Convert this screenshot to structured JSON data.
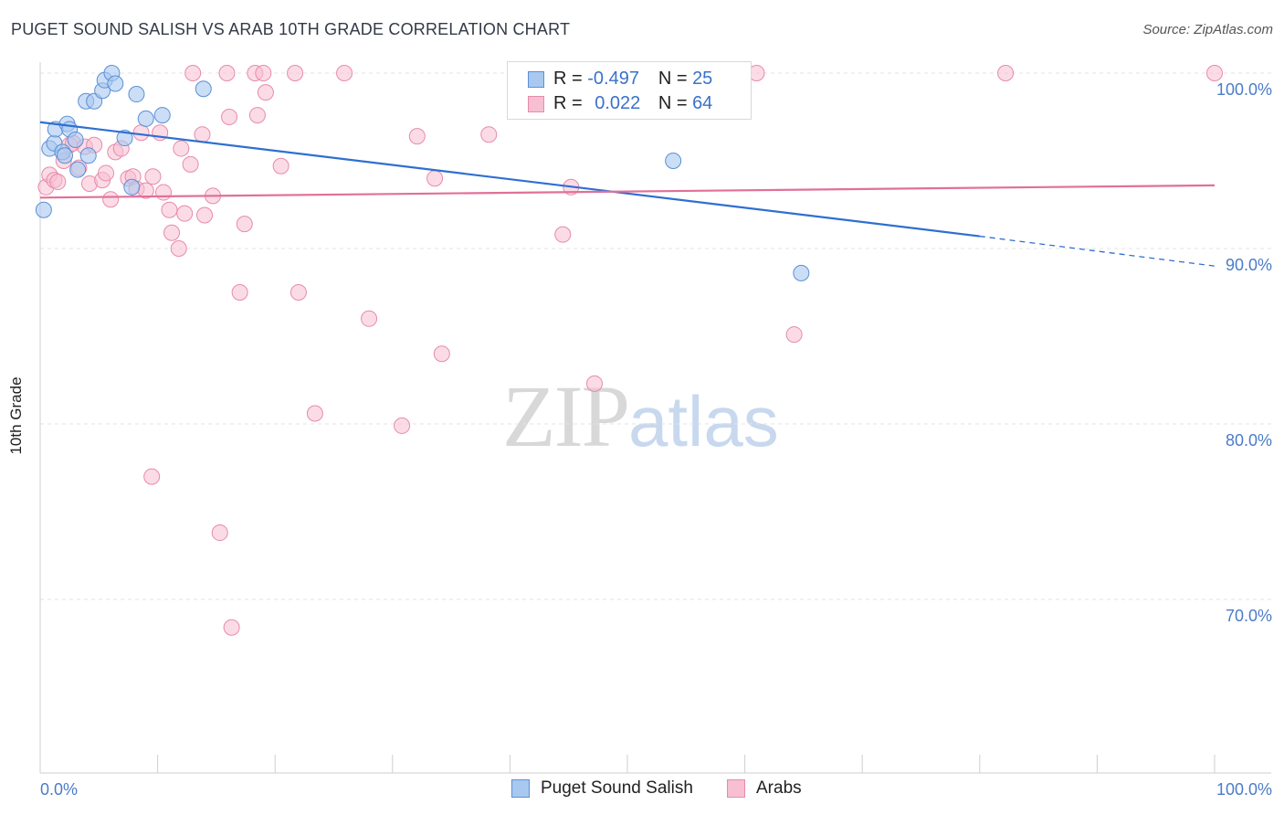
{
  "title": "PUGET SOUND SALISH VS ARAB 10TH GRADE CORRELATION CHART",
  "source": "Source: ZipAtlas.com",
  "watermark": {
    "zip": "ZIP",
    "atlas": "atlas"
  },
  "colors": {
    "blue_fill": "#a9c8f0",
    "blue_stroke": "#5b8fd6",
    "blue_line": "#2e6fd1",
    "pink_fill": "#f7c0d2",
    "pink_stroke": "#e88aaa",
    "pink_line": "#e0709a",
    "grid": "#e3e3e3",
    "tick_text": "#4a7cc9"
  },
  "legend": {
    "rows": [
      {
        "r_label": "R =",
        "r_value": "-0.497",
        "n_label": "N =",
        "n_value": "25"
      },
      {
        "r_label": "R =",
        "r_value": "0.022",
        "n_label": "N =",
        "n_value": "64"
      }
    ]
  },
  "bottom_legend": [
    {
      "label": "Puget Sound Salish"
    },
    {
      "label": "Arabs"
    }
  ],
  "chart_data": {
    "type": "scatter",
    "title": "PUGET SOUND SALISH VS ARAB 10TH GRADE CORRELATION CHART",
    "xlabel": "",
    "ylabel": "10th Grade",
    "xlim": [
      0,
      100
    ],
    "ylim": [
      60.5,
      100.5
    ],
    "x_tick_labels": [
      "0.0%",
      "100.0%"
    ],
    "y_ticks": [
      {
        "value": 100,
        "label": "100.0%"
      },
      {
        "value": 90,
        "label": "90.0%"
      },
      {
        "value": 80,
        "label": "80.0%"
      },
      {
        "value": 70,
        "label": "70.0%"
      }
    ],
    "series": [
      {
        "name": "Puget Sound Salish",
        "points": [
          [
            0.3,
            92.2
          ],
          [
            0.8,
            95.7
          ],
          [
            1.2,
            96.0
          ],
          [
            1.3,
            96.8
          ],
          [
            1.9,
            95.5
          ],
          [
            2.1,
            95.3
          ],
          [
            2.3,
            97.1
          ],
          [
            2.5,
            96.8
          ],
          [
            3.0,
            96.2
          ],
          [
            3.2,
            94.5
          ],
          [
            4.1,
            95.3
          ],
          [
            3.9,
            98.4
          ],
          [
            4.6,
            98.4
          ],
          [
            5.3,
            99.0
          ],
          [
            5.5,
            99.6
          ],
          [
            6.1,
            100.0
          ],
          [
            6.4,
            99.4
          ],
          [
            7.2,
            96.3
          ],
          [
            7.8,
            93.5
          ],
          [
            8.2,
            98.8
          ],
          [
            9.0,
            97.4
          ],
          [
            10.4,
            97.6
          ],
          [
            13.9,
            99.1
          ],
          [
            53.9,
            95.0
          ],
          [
            64.8,
            88.6
          ]
        ],
        "trend": {
          "x0": 0,
          "y0": 97.2,
          "x1": 80,
          "y1": 90.7,
          "dash_to_x": 100,
          "dash_to_y": 89.0
        }
      },
      {
        "name": "Arabs",
        "points": [
          [
            0.5,
            93.5
          ],
          [
            0.8,
            94.2
          ],
          [
            1.2,
            93.9
          ],
          [
            1.5,
            93.8
          ],
          [
            2.0,
            95.0
          ],
          [
            2.5,
            95.9
          ],
          [
            2.8,
            96.0
          ],
          [
            3.3,
            94.6
          ],
          [
            3.8,
            95.8
          ],
          [
            4.2,
            93.7
          ],
          [
            4.6,
            95.9
          ],
          [
            5.3,
            93.9
          ],
          [
            5.6,
            94.3
          ],
          [
            6.0,
            92.8
          ],
          [
            6.4,
            95.5
          ],
          [
            6.9,
            95.7
          ],
          [
            7.5,
            94.0
          ],
          [
            7.9,
            94.1
          ],
          [
            8.2,
            93.4
          ],
          [
            8.6,
            96.6
          ],
          [
            9.0,
            93.3
          ],
          [
            9.6,
            94.1
          ],
          [
            10.2,
            96.6
          ],
          [
            10.5,
            93.2
          ],
          [
            11.0,
            92.2
          ],
          [
            11.2,
            90.9
          ],
          [
            12.0,
            95.7
          ],
          [
            12.3,
            92.0
          ],
          [
            12.8,
            94.8
          ],
          [
            13.0,
            100.0
          ],
          [
            13.8,
            96.5
          ],
          [
            14.0,
            91.9
          ],
          [
            14.7,
            93.0
          ],
          [
            15.9,
            100.0
          ],
          [
            16.1,
            97.5
          ],
          [
            16.3,
            68.4
          ],
          [
            17.0,
            87.5
          ],
          [
            17.4,
            91.4
          ],
          [
            18.5,
            97.6
          ],
          [
            18.3,
            100.0
          ],
          [
            19.0,
            100.0
          ],
          [
            19.2,
            98.9
          ],
          [
            20.5,
            94.7
          ],
          [
            21.7,
            100.0
          ],
          [
            22.0,
            87.5
          ],
          [
            23.4,
            80.6
          ],
          [
            25.9,
            100.0
          ],
          [
            28.0,
            86.0
          ],
          [
            30.8,
            79.9
          ],
          [
            32.1,
            96.4
          ],
          [
            33.6,
            94.0
          ],
          [
            34.2,
            84.0
          ],
          [
            38.2,
            96.5
          ],
          [
            44.5,
            90.8
          ],
          [
            45.2,
            93.5
          ],
          [
            47.5,
            100.0
          ],
          [
            47.2,
            82.3
          ],
          [
            61.0,
            100.0
          ],
          [
            64.2,
            85.1
          ],
          [
            82.2,
            100.0
          ],
          [
            100.0,
            100.0
          ],
          [
            9.5,
            77.0
          ],
          [
            15.3,
            73.8
          ],
          [
            11.8,
            90.0
          ]
        ],
        "trend": {
          "x0": 0,
          "y0": 92.9,
          "x1": 100,
          "y1": 93.6
        }
      }
    ]
  }
}
